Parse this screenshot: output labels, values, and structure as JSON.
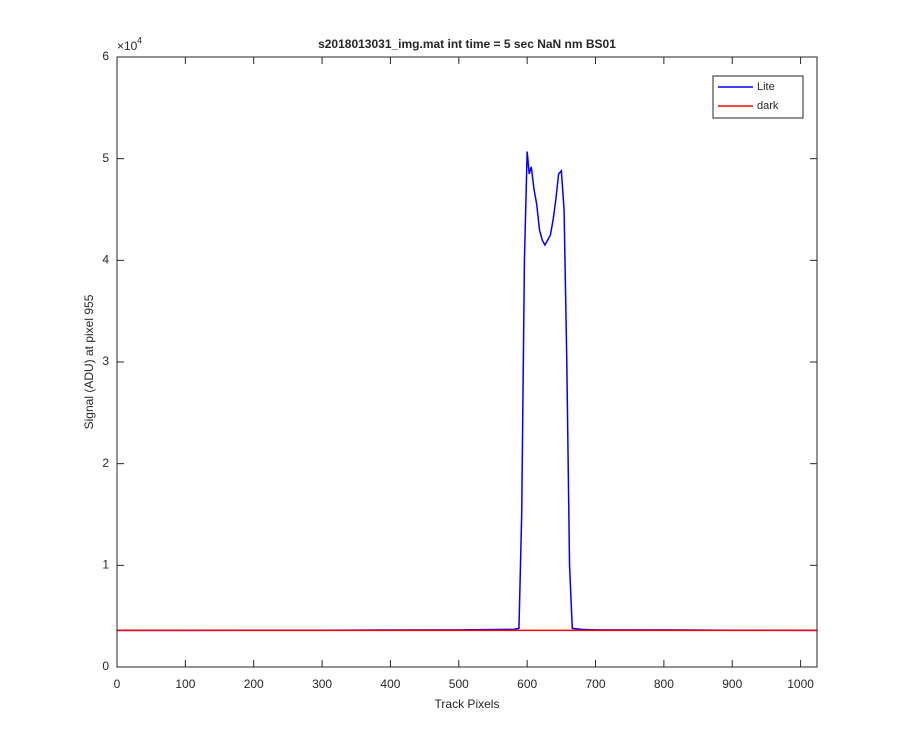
{
  "chart_data": {
    "type": "line",
    "title": "s2018013031_img.mat int time = 5 sec  NaN nm BS01",
    "x_label": "Track Pixels",
    "y_label": "Signal (ADU) at pixel 955",
    "y_multiplier": {
      "base": "×10",
      "exponent": "4"
    },
    "xlim": [
      0,
      1024
    ],
    "xticks": [
      0,
      100,
      200,
      300,
      400,
      500,
      600,
      700,
      800,
      900,
      1000
    ],
    "ylim": [
      0,
      60000
    ],
    "yticks": [
      {
        "value": 0,
        "label": "0"
      },
      {
        "value": 10000,
        "label": "1"
      },
      {
        "value": 20000,
        "label": "2"
      },
      {
        "value": 30000,
        "label": "3"
      },
      {
        "value": 40000,
        "label": "4"
      },
      {
        "value": 50000,
        "label": "5"
      },
      {
        "value": 60000,
        "label": "6"
      }
    ],
    "legend": "top-right",
    "series": [
      {
        "name": "Lite",
        "color": "#0000ff",
        "x": [
          0,
          100,
          200,
          300,
          400,
          500,
          580,
          588,
          592,
          596,
          600,
          603,
          606,
          610,
          614,
          618,
          622,
          626,
          630,
          634,
          638,
          642,
          646,
          650,
          654,
          658,
          662,
          666,
          680,
          700,
          800,
          900,
          1024
        ],
        "values": [
          3600,
          3600,
          3620,
          3620,
          3640,
          3650,
          3700,
          3800,
          15000,
          40000,
          50700,
          48500,
          49200,
          47000,
          45500,
          43000,
          42000,
          41500,
          42000,
          42500,
          44000,
          46000,
          48500,
          48800,
          45000,
          30000,
          10000,
          3800,
          3700,
          3650,
          3650,
          3620,
          3600
        ]
      },
      {
        "name": "dark",
        "color": "#ff0000",
        "x": [
          0,
          1024
        ],
        "values": [
          3600,
          3600
        ]
      }
    ]
  }
}
